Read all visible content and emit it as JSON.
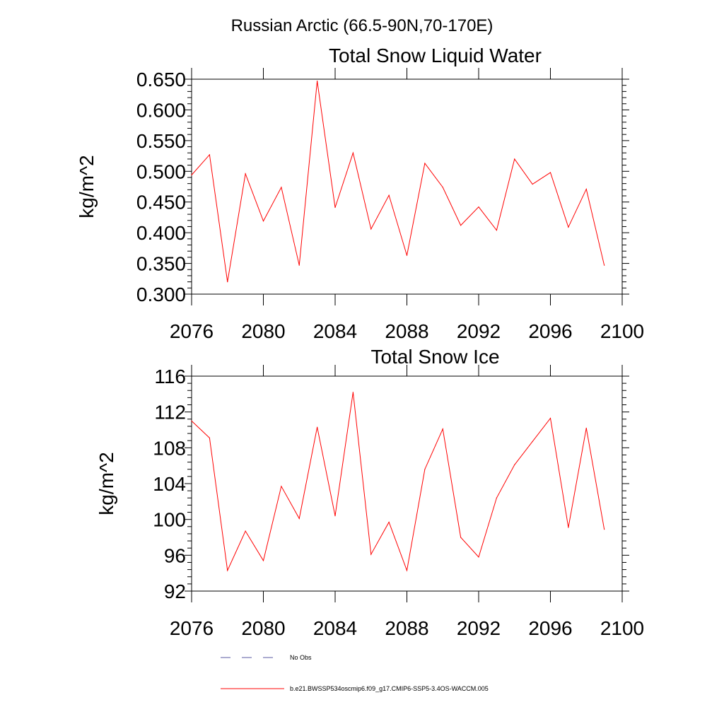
{
  "suptitle": "Russian Arctic (66.5-90N,70-170E)",
  "legend": {
    "entries": [
      {
        "label": "No Obs",
        "style": "dashed",
        "color": "#5a5aa0"
      },
      {
        "label": "b.e21.BWSSP534oscmip6.f09_g17.CMIP6-SSP5-3.4OS-WACCM.005",
        "style": "solid",
        "color": "#ff0000"
      }
    ]
  },
  "chart_data": [
    {
      "type": "line",
      "title": "Total Snow Liquid Water",
      "xlabel": "",
      "ylabel": "kg/m^2",
      "xlim": [
        2076,
        2100
      ],
      "ylim": [
        0.3,
        0.65
      ],
      "xticks": [
        2076,
        2080,
        2084,
        2088,
        2092,
        2096,
        2100
      ],
      "yticks": [
        0.3,
        0.35,
        0.4,
        0.45,
        0.5,
        0.55,
        0.6,
        0.65
      ],
      "ytick_labels": [
        "0.300",
        "0.350",
        "0.400",
        "0.450",
        "0.500",
        "0.550",
        "0.600",
        "0.650"
      ],
      "grid": false,
      "series": [
        {
          "name": "b.e21.BWSSP534oscmip6.f09_g17.CMIP6-SSP5-3.4OS-WACCM.005",
          "color": "#ff0000",
          "x": [
            2076,
            2077,
            2078,
            2079,
            2080,
            2081,
            2082,
            2083,
            2084,
            2085,
            2086,
            2087,
            2088,
            2089,
            2090,
            2091,
            2092,
            2093,
            2094,
            2095,
            2096,
            2097,
            2098,
            2099
          ],
          "values": [
            0.494,
            0.527,
            0.32,
            0.496,
            0.419,
            0.474,
            0.347,
            0.647,
            0.441,
            0.53,
            0.406,
            0.461,
            0.363,
            0.513,
            0.474,
            0.412,
            0.442,
            0.404,
            0.52,
            0.479,
            0.498,
            0.409,
            0.471,
            0.347
          ]
        }
      ]
    },
    {
      "type": "line",
      "title": "Total Snow Ice",
      "xlabel": "",
      "ylabel": "kg/m^2",
      "xlim": [
        2076,
        2100
      ],
      "ylim": [
        92,
        116
      ],
      "xticks": [
        2076,
        2080,
        2084,
        2088,
        2092,
        2096,
        2100
      ],
      "yticks": [
        92,
        96,
        100,
        104,
        108,
        112,
        116
      ],
      "ytick_labels": [
        "92",
        "96",
        "100",
        "104",
        "108",
        "112",
        "116"
      ],
      "grid": false,
      "series": [
        {
          "name": "b.e21.BWSSP534oscmip6.f09_g17.CMIP6-SSP5-3.4OS-WACCM.005",
          "color": "#ff0000",
          "x": [
            2076,
            2077,
            2078,
            2079,
            2080,
            2081,
            2082,
            2083,
            2084,
            2085,
            2086,
            2087,
            2088,
            2089,
            2090,
            2091,
            2092,
            2093,
            2094,
            2095,
            2096,
            2097,
            2098,
            2099
          ],
          "values": [
            111.0,
            109.1,
            94.3,
            98.7,
            95.4,
            103.7,
            100.1,
            110.3,
            100.4,
            114.2,
            96.1,
            99.7,
            94.3,
            105.6,
            110.1,
            98.0,
            95.8,
            102.4,
            106.1,
            108.7,
            111.3,
            99.1,
            110.2,
            98.9
          ]
        }
      ]
    }
  ]
}
